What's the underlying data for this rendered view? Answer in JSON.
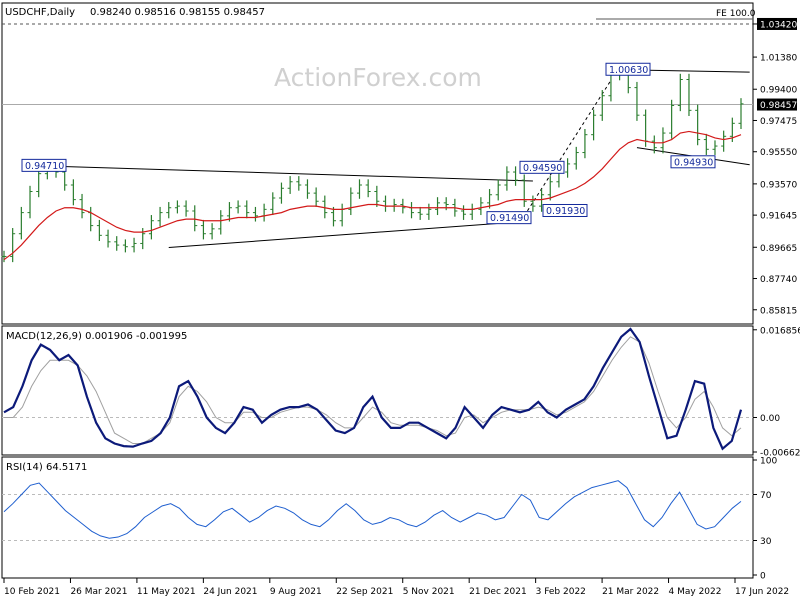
{
  "header": {
    "symbol": "USDCHF,Daily",
    "ohlc": "0.98240 0.98516 0.98155 0.98457"
  },
  "watermark": "ActionForex.com",
  "colors": {
    "price": "#2a7d2e",
    "ma": "#d31a1a",
    "macd": "#0c1a7a",
    "signal": "#a0a0a0",
    "rsi": "#1f5fcf",
    "box": "#142a9c",
    "background": "#ffffff"
  },
  "chart_data": [
    {
      "type": "line",
      "panel": "price",
      "y_range": [
        0.85,
        1.0465
      ],
      "ticks": [
        "1.03420",
        "1.01380",
        "0.99400",
        "0.97475",
        "0.95550",
        "0.93570",
        "0.91645",
        "0.89665",
        "0.87740",
        "0.85815"
      ],
      "current_value": "0.98457",
      "x_labels": [
        "10 Feb 2021",
        "26 Mar 2021",
        "11 May 2021",
        "24 Jun 2021",
        "9 Aug 2021",
        "22 Sep 2021",
        "5 Nov 2021",
        "21 Dec 2021",
        "3 Feb 2022",
        "21 Mar 2022",
        "4 May 2022",
        "17 Jun 2022"
      ],
      "annotations": [
        {
          "label": "0.94710",
          "value": 0.9471
        },
        {
          "label": "0.91490",
          "value": 0.9149
        },
        {
          "label": "0.91930",
          "value": 0.9193
        },
        {
          "label": "0.94590",
          "value": 0.9459
        },
        {
          "label": "1.00630",
          "value": 1.0063
        },
        {
          "label": "0.94930",
          "value": 0.9493
        }
      ],
      "fib_label": "FE 100.0",
      "fib_level": "1.03420",
      "series": [
        {
          "values": [
            0.891,
            0.905,
            0.918,
            0.931,
            0.942,
            0.946,
            0.943,
            0.935,
            0.926,
            0.918,
            0.91,
            0.904,
            0.9,
            0.898,
            0.897,
            0.899,
            0.905,
            0.913,
            0.918,
            0.921,
            0.922,
            0.919,
            0.91,
            0.905,
            0.908,
            0.916,
            0.921,
            0.922,
            0.918,
            0.916,
            0.92,
            0.927,
            0.933,
            0.937,
            0.935,
            0.93,
            0.925,
            0.918,
            0.913,
            0.92,
            0.93,
            0.935,
            0.931,
            0.925,
            0.922,
            0.923,
            0.921,
            0.918,
            0.917,
            0.92,
            0.924,
            0.923,
            0.919,
            0.917,
            0.92,
            0.924,
            0.929,
            0.935,
            0.943,
            0.938,
            0.925,
            0.922,
            0.929,
            0.937,
            0.943,
            0.948,
            0.955,
            0.966,
            0.978,
            0.99,
            1.003,
            1.006,
            0.995,
            0.978,
            0.962,
            0.958,
            0.967,
            0.984,
            1.0,
            0.981,
            0.963,
            0.957,
            0.959,
            0.965,
            0.973,
            0.985
          ]
        },
        {
          "values": [
            0.889,
            0.893,
            0.898,
            0.904,
            0.91,
            0.915,
            0.919,
            0.921,
            0.921,
            0.92,
            0.918,
            0.915,
            0.912,
            0.909,
            0.907,
            0.906,
            0.906,
            0.907,
            0.909,
            0.911,
            0.913,
            0.914,
            0.914,
            0.913,
            0.913,
            0.913,
            0.914,
            0.915,
            0.915,
            0.915,
            0.916,
            0.917,
            0.918,
            0.92,
            0.921,
            0.922,
            0.922,
            0.921,
            0.92,
            0.92,
            0.921,
            0.922,
            0.923,
            0.923,
            0.922,
            0.922,
            0.922,
            0.921,
            0.921,
            0.921,
            0.921,
            0.921,
            0.921,
            0.92,
            0.92,
            0.921,
            0.922,
            0.923,
            0.925,
            0.926,
            0.926,
            0.926,
            0.926,
            0.927,
            0.929,
            0.931,
            0.933,
            0.936,
            0.94,
            0.945,
            0.951,
            0.957,
            0.961,
            0.963,
            0.962,
            0.961,
            0.961,
            0.963,
            0.967,
            0.968,
            0.967,
            0.966,
            0.964,
            0.963,
            0.964,
            0.966
          ]
        }
      ]
    },
    {
      "type": "line",
      "panel": "macd",
      "title": "MACD(12,26,9) 0.001906 -0.001995",
      "y_range": [
        -0.00663,
        0.0172
      ],
      "ticks": [
        "0.016856",
        "0.00",
        "-0.006629"
      ],
      "series": [
        {
          "values": [
            0.001,
            0.002,
            0.006,
            0.011,
            0.014,
            0.013,
            0.011,
            0.012,
            0.01,
            0.004,
            -0.001,
            -0.004,
            -0.005,
            -0.0055,
            -0.0056,
            -0.005,
            -0.0045,
            -0.003,
            0.0,
            0.006,
            0.007,
            0.004,
            0.0,
            -0.002,
            -0.003,
            -0.001,
            0.002,
            0.0015,
            -0.001,
            0.0005,
            0.0015,
            0.002,
            0.002,
            0.0025,
            0.0015,
            -0.0005,
            -0.0025,
            -0.003,
            -0.002,
            0.002,
            0.004,
            0.0,
            -0.002,
            -0.002,
            -0.001,
            -0.001,
            -0.002,
            -0.003,
            -0.004,
            -0.002,
            0.002,
            0.0,
            -0.002,
            0.0005,
            0.002,
            0.0015,
            0.001,
            0.0015,
            0.003,
            0.001,
            0.0,
            0.0015,
            0.0025,
            0.0035,
            0.006,
            0.0095,
            0.0125,
            0.0155,
            0.017,
            0.0145,
            0.008,
            0.002,
            -0.004,
            -0.0035,
            0.0015,
            0.007,
            0.0065,
            -0.002,
            -0.006,
            -0.0045,
            0.0015
          ]
        },
        {
          "values": [
            0.0,
            0.0,
            0.002,
            0.006,
            0.009,
            0.011,
            0.011,
            0.011,
            0.01,
            0.008,
            0.005,
            0.001,
            -0.003,
            -0.004,
            -0.005,
            -0.005,
            -0.004,
            -0.003,
            -0.001,
            0.004,
            0.006,
            0.005,
            0.003,
            0.0,
            -0.001,
            -0.001,
            0.001,
            0.001,
            0.0,
            0.0,
            0.001,
            0.0015,
            0.002,
            0.002,
            0.0015,
            0.0005,
            -0.001,
            -0.002,
            -0.002,
            0.0,
            0.002,
            0.001,
            -0.001,
            -0.0015,
            -0.0015,
            -0.0015,
            -0.002,
            -0.0025,
            -0.0035,
            -0.003,
            0.0,
            0.0005,
            -0.001,
            0.0,
            0.001,
            0.0015,
            0.0015,
            0.0015,
            0.002,
            0.0015,
            0.0005,
            0.001,
            0.002,
            0.003,
            0.005,
            0.008,
            0.011,
            0.0135,
            0.0155,
            0.0145,
            0.0105,
            0.005,
            0.0,
            -0.002,
            0.0,
            0.0035,
            0.005,
            0.002,
            -0.002,
            -0.0035,
            -0.002
          ]
        }
      ]
    },
    {
      "type": "line",
      "panel": "rsi",
      "title": "RSI(14) 64.5171",
      "y_range": [
        0,
        100
      ],
      "ticks": [
        "100",
        "70",
        "30",
        "0"
      ],
      "levels": [
        70,
        30
      ],
      "series": [
        {
          "values": [
            55,
            62,
            70,
            78,
            80,
            72,
            64,
            56,
            50,
            44,
            38,
            34,
            32,
            33,
            36,
            42,
            50,
            55,
            60,
            62,
            58,
            50,
            44,
            42,
            48,
            55,
            58,
            52,
            46,
            50,
            56,
            60,
            58,
            54,
            48,
            44,
            42,
            48,
            56,
            62,
            56,
            48,
            44,
            46,
            50,
            48,
            44,
            42,
            46,
            52,
            56,
            50,
            46,
            50,
            54,
            52,
            48,
            50,
            60,
            70,
            65,
            50,
            48,
            55,
            62,
            68,
            72,
            76,
            78,
            80,
            82,
            76,
            62,
            48,
            42,
            50,
            62,
            72,
            58,
            44,
            40,
            42,
            50,
            58,
            64
          ]
        }
      ]
    }
  ]
}
